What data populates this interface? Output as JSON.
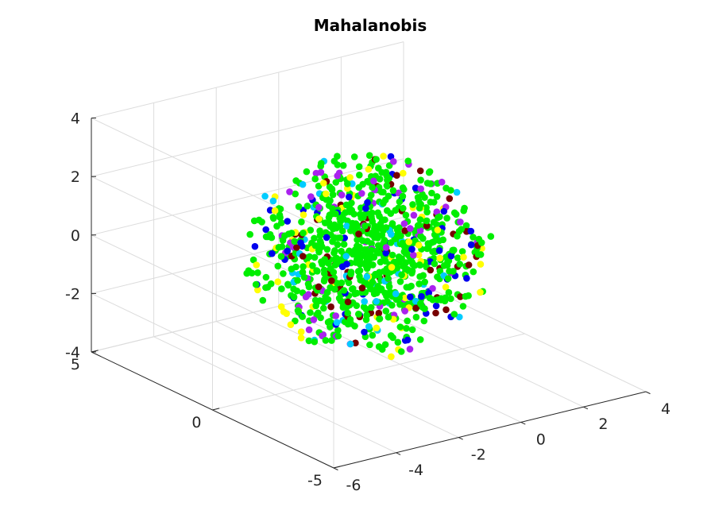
{
  "chart_data": {
    "type": "scatter",
    "title": "Mahalanobis",
    "xlabel": "",
    "ylabel": "",
    "zlabel": "",
    "grid": true,
    "x_ticks": [
      "-6",
      "-4",
      "-2",
      "0",
      "2",
      "4"
    ],
    "y_ticks": [
      "-5",
      "0",
      "5"
    ],
    "z_ticks": [
      "-4",
      "-2",
      "0",
      "2",
      "4"
    ],
    "xlim": [
      -6,
      4
    ],
    "ylim": [
      -5,
      5
    ],
    "zlim": [
      -4,
      4
    ],
    "point_count": 1000,
    "shape": "sphere of radius ~3.2 centered near (-1, 0, 0)",
    "colors": [
      "#00ee00",
      "#ffff00",
      "#00ccff",
      "#0000ee",
      "#aa22ee",
      "#770000"
    ],
    "color_weights": [
      0.62,
      0.09,
      0.08,
      0.09,
      0.07,
      0.05
    ],
    "center": [
      -1.0,
      0.0,
      0.0
    ],
    "radius": 3.2
  }
}
